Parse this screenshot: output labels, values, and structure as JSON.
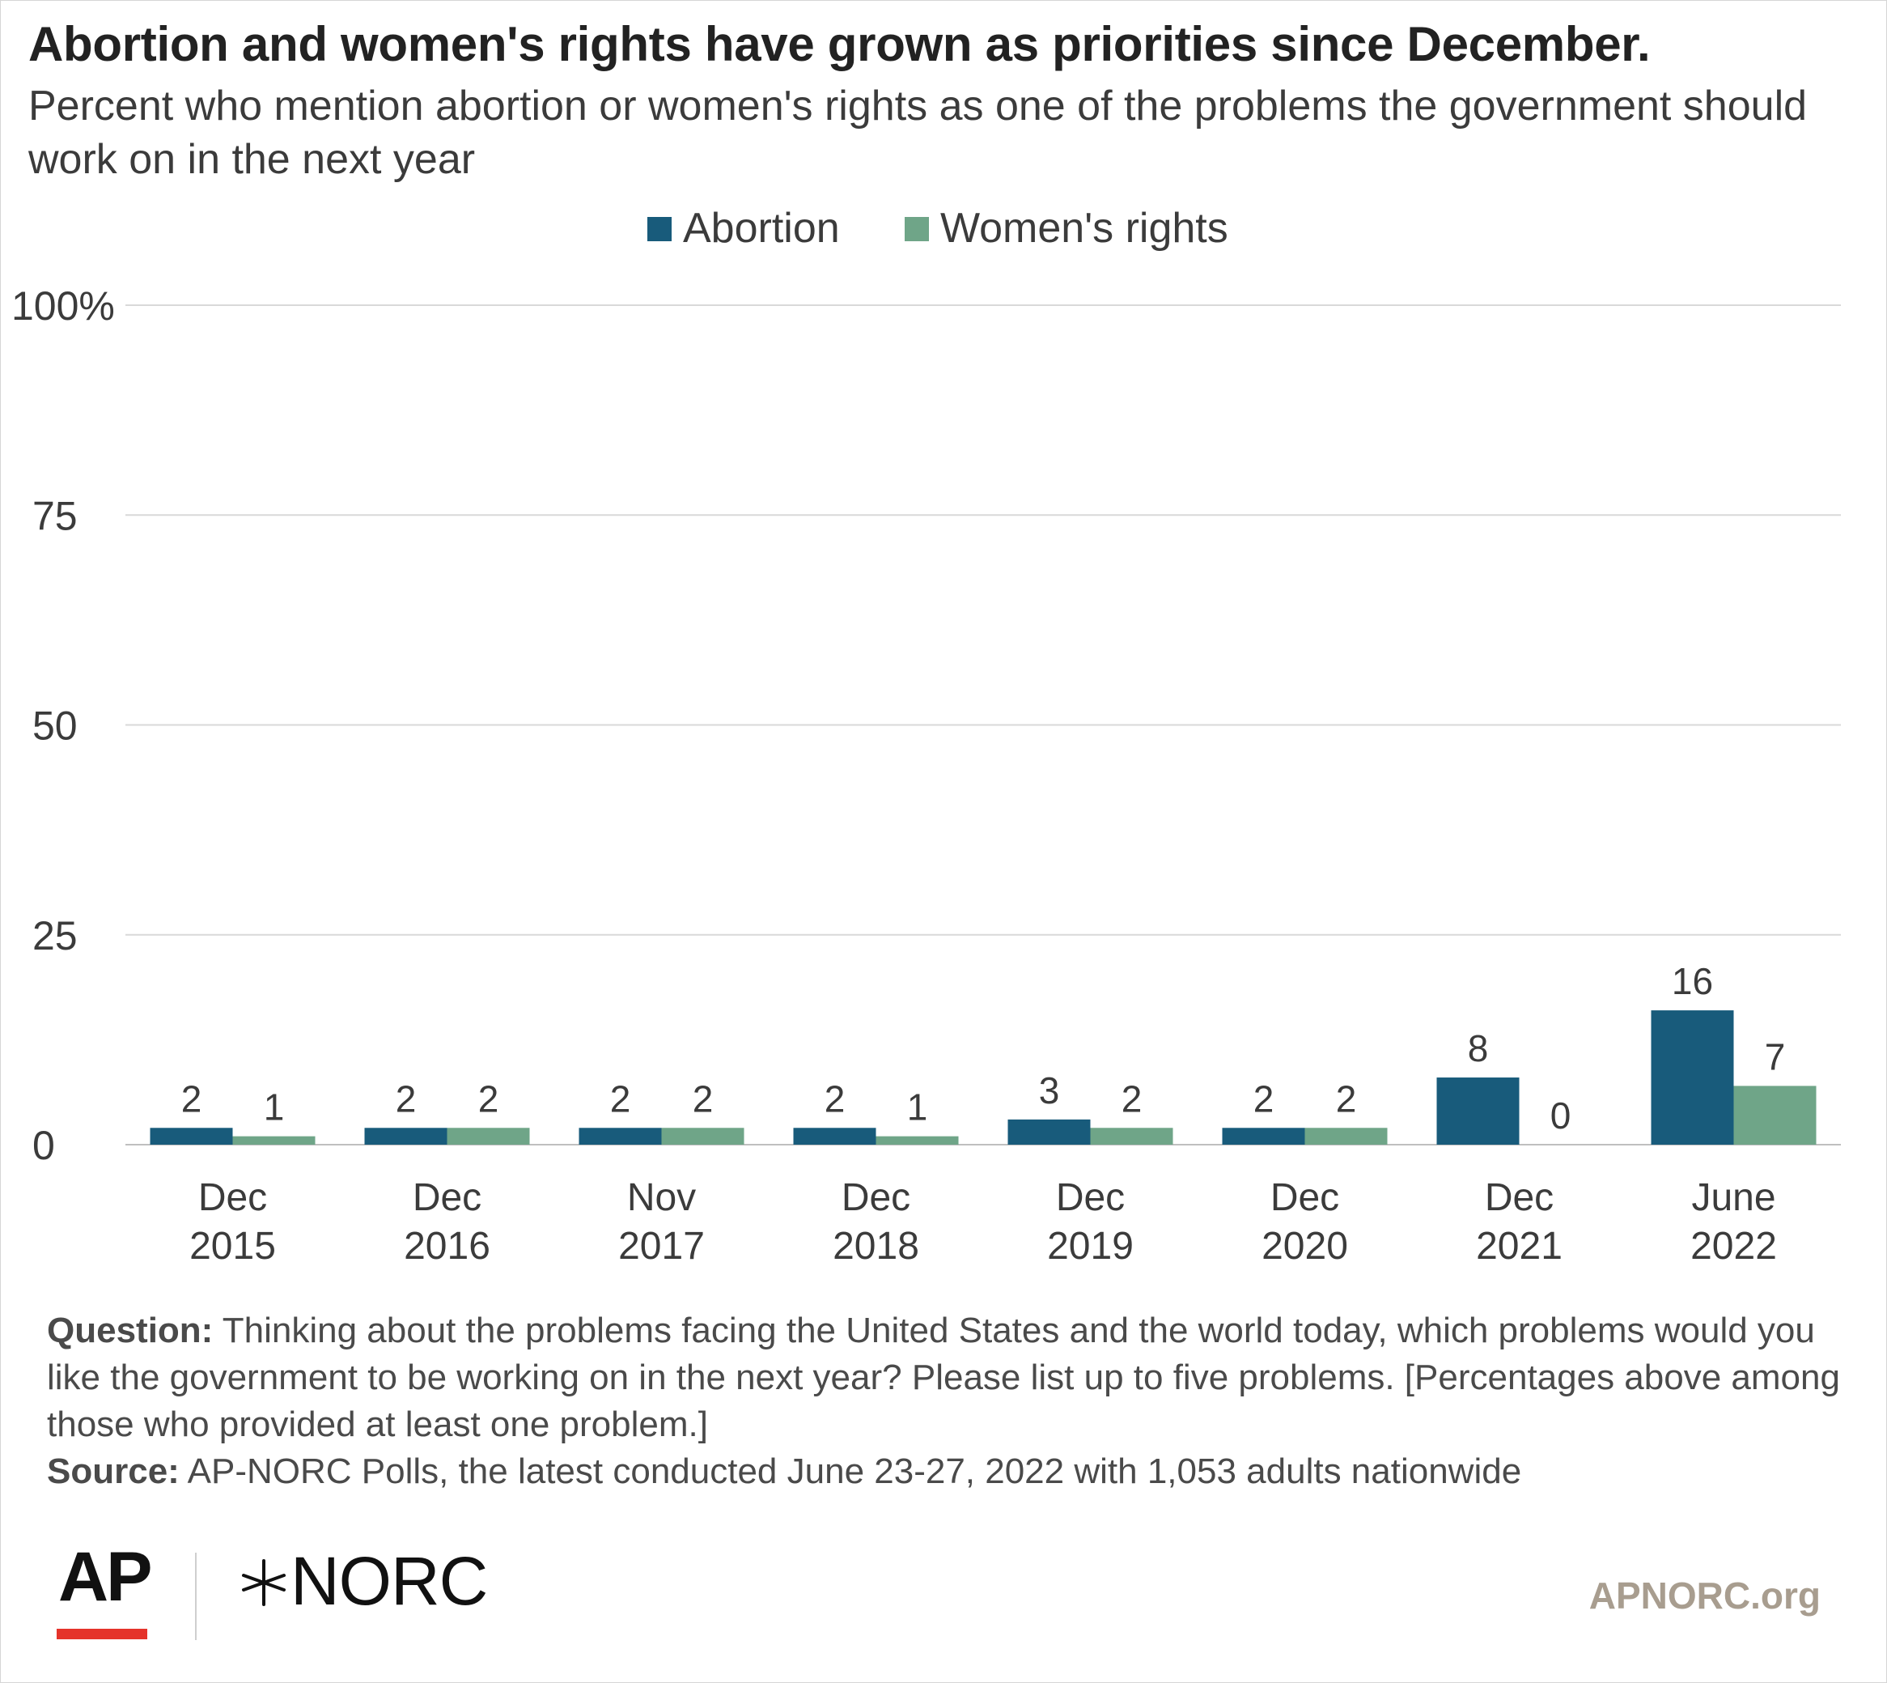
{
  "title": "Abortion and women's rights have grown as priorities since December.",
  "subtitle": "Percent who mention abortion or women's rights as one of the problems the government should work on in the next year",
  "colors": {
    "abortion": "#185b7b",
    "womens_rights": "#6fa588",
    "grid": "#d9d9d9",
    "axis": "#bfbfbf",
    "brand_red": "#e5332a",
    "site": "#a89d8f"
  },
  "chart_data": {
    "type": "bar",
    "categories": [
      [
        "Dec",
        "2015"
      ],
      [
        "Dec",
        "2016"
      ],
      [
        "Nov",
        "2017"
      ],
      [
        "Dec",
        "2018"
      ],
      [
        "Dec",
        "2019"
      ],
      [
        "Dec",
        "2020"
      ],
      [
        "Dec",
        "2021"
      ],
      [
        "June",
        "2022"
      ]
    ],
    "series": [
      {
        "name": "Abortion",
        "values": [
          2,
          2,
          2,
          2,
          3,
          2,
          8,
          16
        ],
        "color": "#185b7b"
      },
      {
        "name": "Women's rights",
        "values": [
          1,
          2,
          2,
          1,
          2,
          2,
          0,
          7
        ],
        "color": "#6fa588"
      }
    ],
    "y_ticks": [
      "0",
      "25",
      "50",
      "75",
      "100%"
    ],
    "ylim": [
      0,
      100
    ],
    "grid": true,
    "legend": "top-center",
    "data_labels": true
  },
  "notes": {
    "question_label": "Question:",
    "question_text": " Thinking about the problems facing the United States and the world today, which problems would you like the government to be working on in the next year? Please list up to five problems. [Percentages above among those who provided at least one problem.]",
    "source_label": "Source:",
    "source_text": " AP-NORC Polls, the latest conducted June 23-27, 2022 with 1,053 adults nationwide"
  },
  "logos": {
    "ap": "AP",
    "norc": "NORC",
    "norc_icon": "star-burst-icon"
  },
  "site": "APNORC.org"
}
